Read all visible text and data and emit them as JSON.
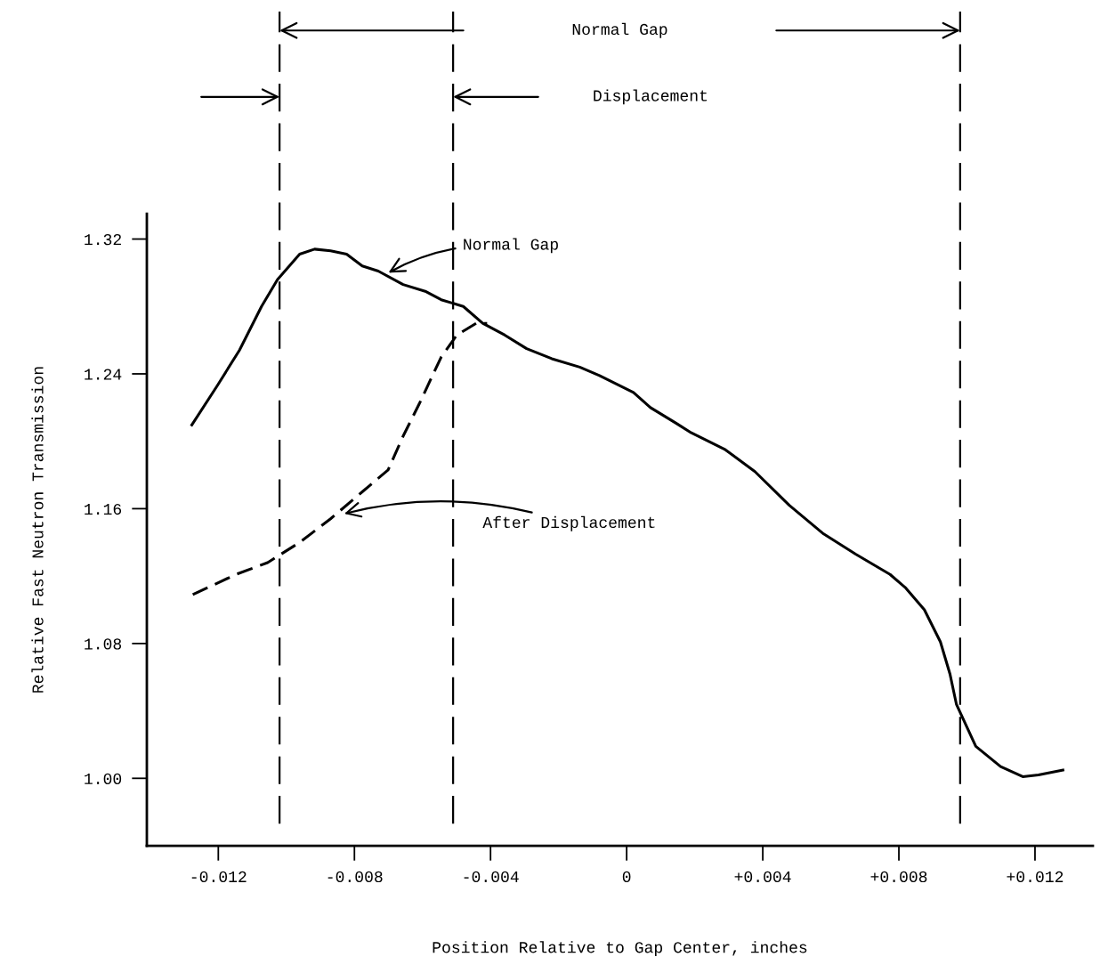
{
  "chart_data": {
    "type": "line",
    "xlabel": "Position Relative to Gap Center, inches",
    "ylabel": "Relative Fast Neutron Transmission",
    "xlim": [
      -0.0141,
      0.0137
    ],
    "ylim": [
      0.96,
      1.335
    ],
    "xticks": [
      {
        "value": -0.012,
        "label": "-0.012"
      },
      {
        "value": -0.008,
        "label": "-0.008"
      },
      {
        "value": -0.004,
        "label": "-0.004"
      },
      {
        "value": 0,
        "label": "0"
      },
      {
        "value": 0.004,
        "label": "+0.004"
      },
      {
        "value": 0.008,
        "label": "+0.008"
      },
      {
        "value": 0.012,
        "label": "+0.012"
      }
    ],
    "yticks": [
      {
        "value": 1.0,
        "label": "1.00"
      },
      {
        "value": 1.08,
        "label": "1.08"
      },
      {
        "value": 1.16,
        "label": "1.16"
      },
      {
        "value": 1.24,
        "label": "1.24"
      },
      {
        "value": 1.32,
        "label": "1.32"
      }
    ],
    "grid": false,
    "legend": false,
    "marker": "none",
    "series": [
      {
        "color": "#000000",
        "line_style": "solid",
        "x": [
          -0.0128,
          -0.01203,
          -0.01138,
          -0.01073,
          -0.01026,
          -0.00961,
          -0.00917,
          -0.0087,
          -0.00823,
          -0.00777,
          -0.0073,
          -0.00657,
          -0.00592,
          -0.00545,
          -0.0048,
          -0.00423,
          -0.00358,
          -0.00294,
          -0.0022,
          -0.00138,
          -0.0008,
          0.0002,
          0.0007,
          0.00143,
          0.0019,
          0.0029,
          0.00377,
          0.00478,
          0.00579,
          0.00673,
          0.00774,
          0.0082,
          0.00875,
          0.00922,
          0.0095,
          0.00969,
          0.01026,
          0.01099,
          0.01164,
          0.0121,
          0.01286
        ],
        "values": [
          1.209,
          1.233,
          1.254,
          1.28,
          1.296,
          1.311,
          1.314,
          1.313,
          1.311,
          1.304,
          1.301,
          1.293,
          1.289,
          1.284,
          1.28,
          1.27,
          1.263,
          1.255,
          1.249,
          1.244,
          1.239,
          1.229,
          1.22,
          1.211,
          1.205,
          1.195,
          1.182,
          1.162,
          1.145,
          1.133,
          1.121,
          1.113,
          1.1,
          1.081,
          1.062,
          1.044,
          1.019,
          1.007,
          1.001,
          1.002,
          1.005
        ]
      },
      {
        "color": "#000000",
        "line_style": "dashed",
        "x": [
          -0.01275,
          -0.01148,
          -0.01055,
          -0.00961,
          -0.0087,
          -0.00777,
          -0.00701,
          -0.00657,
          -0.0061,
          -0.00545,
          -0.00499,
          -0.00442,
          -0.0041
        ],
        "values": [
          1.109,
          1.121,
          1.128,
          1.14,
          1.154,
          1.17,
          1.183,
          1.203,
          1.222,
          1.25,
          1.263,
          1.27,
          1.27
        ]
      }
    ],
    "ref_lines": [
      {
        "axis": "x",
        "value": -0.0102,
        "label": null,
        "line_style": "dashed",
        "color": "#000000"
      },
      {
        "axis": "x",
        "value": -0.0051,
        "label": null,
        "line_style": "dashed",
        "color": "#000000"
      },
      {
        "axis": "x",
        "value": 0.0098,
        "label": null,
        "line_style": "dashed",
        "color": "#000000"
      }
    ],
    "annotations": [
      "Normal Gap",
      "Displacement",
      {
        "text": "Normal Gap",
        "x": -0.007,
        "y": 1.3
      },
      {
        "text": "After Displacement",
        "x": -0.0083,
        "y": 1.157
      }
    ]
  }
}
